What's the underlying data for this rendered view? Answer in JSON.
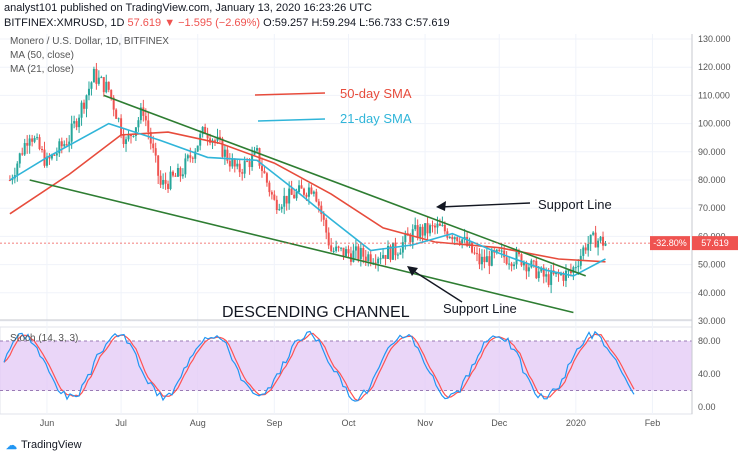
{
  "header": {
    "publisher_line": "analyst101 published on TradingView.com, January 13, 2020 16:23:26 UTC",
    "symbol": "BITFINEX:XMRUSD, 1D",
    "last": "57.619",
    "change": "▼ −1.595 (−2.69%)",
    "ohlc": "O:59.257 H:59.294 L:56.733 C:57.619"
  },
  "legend": {
    "title": "Monero / U.S. Dollar, 1D, BITFINEX",
    "ma50": "MA (50, close)",
    "ma21": "MA (21, close)"
  },
  "annotations": {
    "sma50": "50-day SMA",
    "sma21": "21-day SMA",
    "support_upper": "Support Line",
    "support_lower": "Support Line",
    "channel": "DESCENDING CHANNEL"
  },
  "price_badge": {
    "pct": "-32.80%",
    "price": "57.619"
  },
  "stoch": {
    "label": "Stoch (14, 3, 3)",
    "ticks": [
      "80.00",
      "40.00",
      "0.00"
    ]
  },
  "footer": {
    "brand": "TradingView"
  },
  "colors": {
    "up": "#26a69a",
    "down": "#ef5350",
    "ma50": "#e74c3c",
    "ma21": "#30b5d9",
    "channel": "#2e7d32",
    "stoch_fill": "#e3c8f5",
    "stoch_k": "#2196f3",
    "stoch_d": "#ff5252"
  },
  "chart_data": {
    "type": "candlestick",
    "y_ticks": [
      "130.000",
      "120.000",
      "110.000",
      "100.000",
      "90.000",
      "80.000",
      "70.000",
      "60.000",
      "50.000",
      "40.000",
      "30.000"
    ],
    "ylim": [
      30,
      130
    ],
    "x_ticks": [
      "Jun",
      "Jul",
      "Aug",
      "Sep",
      "Oct",
      "Nov",
      "Dec",
      "2020",
      "Feb"
    ],
    "close_path": [
      {
        "x": "2019-05-17",
        "y": 80
      },
      {
        "x": "2019-05-25",
        "y": 97
      },
      {
        "x": "2019-06-01",
        "y": 86
      },
      {
        "x": "2019-06-10",
        "y": 95
      },
      {
        "x": "2019-06-20",
        "y": 117
      },
      {
        "x": "2019-06-26",
        "y": 112
      },
      {
        "x": "2019-07-03",
        "y": 93
      },
      {
        "x": "2019-07-10",
        "y": 105
      },
      {
        "x": "2019-07-17",
        "y": 78
      },
      {
        "x": "2019-07-25",
        "y": 82
      },
      {
        "x": "2019-08-04",
        "y": 98
      },
      {
        "x": "2019-08-10",
        "y": 92
      },
      {
        "x": "2019-08-17",
        "y": 83
      },
      {
        "x": "2019-08-25",
        "y": 89
      },
      {
        "x": "2019-09-01",
        "y": 72
      },
      {
        "x": "2019-09-10",
        "y": 75
      },
      {
        "x": "2019-09-17",
        "y": 78
      },
      {
        "x": "2019-09-24",
        "y": 55
      },
      {
        "x": "2019-10-01",
        "y": 54
      },
      {
        "x": "2019-10-10",
        "y": 53
      },
      {
        "x": "2019-10-20",
        "y": 55
      },
      {
        "x": "2019-10-27",
        "y": 61
      },
      {
        "x": "2019-11-06",
        "y": 63
      },
      {
        "x": "2019-11-15",
        "y": 60
      },
      {
        "x": "2019-11-23",
        "y": 51
      },
      {
        "x": "2019-12-01",
        "y": 53
      },
      {
        "x": "2019-12-10",
        "y": 52
      },
      {
        "x": "2019-12-20",
        "y": 45
      },
      {
        "x": "2019-12-30",
        "y": 47
      },
      {
        "x": "2020-01-05",
        "y": 57
      },
      {
        "x": "2020-01-09",
        "y": 59
      },
      {
        "x": "2020-01-13",
        "y": 57.619
      }
    ],
    "ma50": [
      {
        "x": "2019-05-17",
        "y": 68
      },
      {
        "x": "2019-06-10",
        "y": 82
      },
      {
        "x": "2019-07-01",
        "y": 96
      },
      {
        "x": "2019-07-20",
        "y": 97
      },
      {
        "x": "2019-08-10",
        "y": 93
      },
      {
        "x": "2019-09-01",
        "y": 86
      },
      {
        "x": "2019-09-24",
        "y": 75
      },
      {
        "x": "2019-10-15",
        "y": 63
      },
      {
        "x": "2019-11-05",
        "y": 58
      },
      {
        "x": "2019-12-01",
        "y": 56
      },
      {
        "x": "2019-12-25",
        "y": 52
      },
      {
        "x": "2020-01-13",
        "y": 51
      }
    ],
    "ma21": [
      {
        "x": "2019-05-17",
        "y": 80
      },
      {
        "x": "2019-06-01",
        "y": 88
      },
      {
        "x": "2019-06-26",
        "y": 100
      },
      {
        "x": "2019-07-17",
        "y": 94
      },
      {
        "x": "2019-08-05",
        "y": 88
      },
      {
        "x": "2019-08-25",
        "y": 87
      },
      {
        "x": "2019-09-10",
        "y": 76
      },
      {
        "x": "2019-09-24",
        "y": 66
      },
      {
        "x": "2019-10-10",
        "y": 55
      },
      {
        "x": "2019-10-27",
        "y": 57
      },
      {
        "x": "2019-11-12",
        "y": 61
      },
      {
        "x": "2019-12-01",
        "y": 54
      },
      {
        "x": "2019-12-20",
        "y": 48
      },
      {
        "x": "2019-12-31",
        "y": 46
      },
      {
        "x": "2020-01-13",
        "y": 52
      }
    ],
    "upper_line": [
      {
        "x": "2019-06-24",
        "y": 110
      },
      {
        "x": "2020-01-05",
        "y": 46
      }
    ],
    "lower_line": [
      {
        "x": "2019-05-25",
        "y": 80
      },
      {
        "x": "2019-12-31",
        "y": 33
      }
    ],
    "stoch_ticks": [
      0,
      40,
      80
    ]
  }
}
